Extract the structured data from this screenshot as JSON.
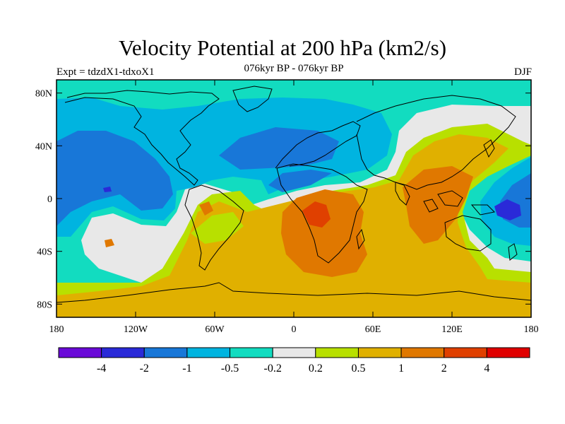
{
  "title": "Velocity Potential at 200 hPa (km2/s)",
  "subtitle_left": "Expt = tdzdX1-tdxoX1",
  "subtitle_center": "076kyr BP - 076kyr BP",
  "subtitle_right": "DJF",
  "map": {
    "lon_ticks": [
      {
        "value": -180,
        "label": "180"
      },
      {
        "value": -120,
        "label": "120W"
      },
      {
        "value": -60,
        "label": "60W"
      },
      {
        "value": 0,
        "label": "0"
      },
      {
        "value": 60,
        "label": "60E"
      },
      {
        "value": 120,
        "label": "120E"
      },
      {
        "value": 180,
        "label": "180"
      }
    ],
    "lat_ticks": [
      {
        "value": 80,
        "label": "80N"
      },
      {
        "value": 40,
        "label": "40N"
      },
      {
        "value": 0,
        "label": "0"
      },
      {
        "value": -40,
        "label": "40S"
      },
      {
        "value": -80,
        "label": "80S"
      }
    ],
    "lon_range": [
      -180,
      180
    ],
    "lat_range": [
      -90,
      90
    ]
  },
  "colorbar": {
    "colors": [
      "#6a0ad8",
      "#2a2ad8",
      "#1877d8",
      "#00b4e0",
      "#12dcc0",
      "#e8e8e8",
      "#b8e000",
      "#e0b000",
      "#e07800",
      "#e04000",
      "#e00000"
    ],
    "labels": [
      "-4",
      "-2",
      "-1",
      "-0.5",
      "-0.2",
      "0.2",
      "0.5",
      "1",
      "2",
      "4"
    ]
  }
}
